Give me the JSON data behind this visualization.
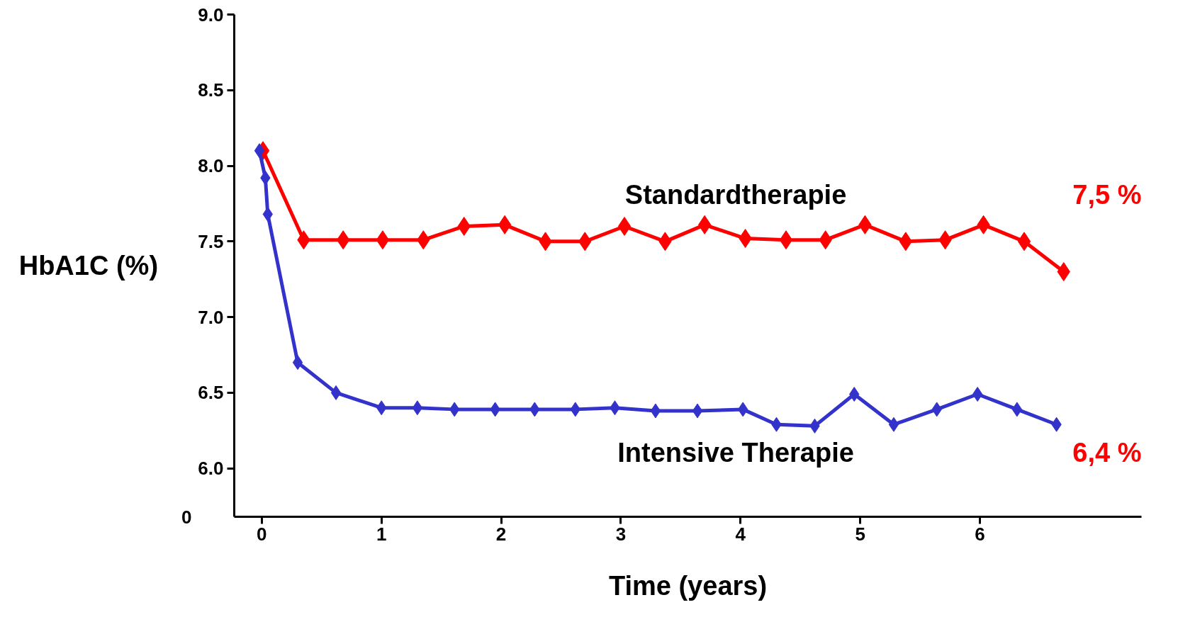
{
  "chart_data": {
    "type": "line",
    "xlabel": "Time (years)",
    "ylabel": "HbA1C (%)",
    "xlim": [
      -0.23,
      7.35
    ],
    "xticks": [
      0,
      1,
      2,
      3,
      4,
      5,
      6
    ],
    "ylim": [
      5.68,
      9.0
    ],
    "yticks": [
      {
        "value": 6.0,
        "label": "6.0"
      },
      {
        "value": 6.5,
        "label": "6.5"
      },
      {
        "value": 7.0,
        "label": "7.0"
      },
      {
        "value": 7.5,
        "label": "7.5"
      },
      {
        "value": 8.0,
        "label": "8.0"
      },
      {
        "value": 8.5,
        "label": "8.5"
      },
      {
        "value": 9.0,
        "label": "9.0"
      }
    ],
    "marker": "diamond",
    "grid": false,
    "series": [
      {
        "name": "Standardtherapie",
        "color": "#ff0000",
        "x": [
          0.01,
          0.35,
          0.68,
          1.01,
          1.35,
          1.69,
          2.03,
          2.37,
          2.7,
          3.03,
          3.37,
          3.7,
          4.04,
          4.38,
          4.71,
          5.04,
          5.38,
          5.71,
          6.03,
          6.37,
          6.7
        ],
        "values": [
          8.1,
          7.51,
          7.51,
          7.51,
          7.51,
          7.6,
          7.61,
          7.5,
          7.5,
          7.6,
          7.5,
          7.61,
          7.52,
          7.51,
          7.51,
          7.61,
          7.5,
          7.51,
          7.61,
          7.5,
          7.3
        ]
      },
      {
        "name": "Intensive Therapie",
        "color": "#3333cc",
        "x": [
          -0.02,
          0.03,
          0.05,
          0.3,
          0.62,
          1.0,
          1.3,
          1.61,
          1.95,
          2.28,
          2.62,
          2.95,
          3.29,
          3.64,
          4.02,
          4.3,
          4.62,
          4.95,
          5.28,
          5.64,
          5.98,
          6.31,
          6.64
        ],
        "values": [
          8.1,
          7.92,
          7.68,
          6.7,
          6.5,
          6.4,
          6.4,
          6.39,
          6.39,
          6.39,
          6.39,
          6.4,
          6.38,
          6.38,
          6.39,
          6.29,
          6.28,
          6.49,
          6.29,
          6.39,
          6.49,
          6.39,
          6.29
        ]
      }
    ],
    "annotations": [
      "7,5 %",
      "6,4 %",
      "0"
    ]
  }
}
